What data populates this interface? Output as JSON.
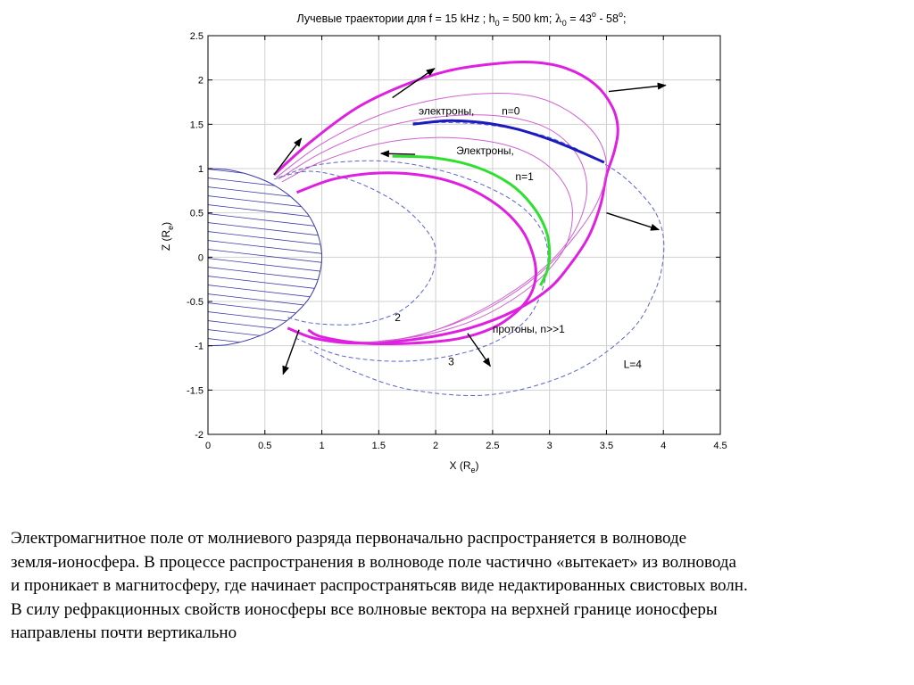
{
  "chart_data": {
    "type": "line",
    "title": {
      "prefix": "Лучевые траектории для f = 15 kHz ;  h",
      "h_sub": "0",
      "h_val": " = 500 km;  ",
      "lambda": "λ",
      "l_sub": "0",
      "l_val1": " = 43",
      "deg1": "o",
      "l_mid": " - 58",
      "deg2": "o",
      "l_end": ";"
    },
    "xlabel": {
      "main": "X (R",
      "sub": "e",
      "close": ")"
    },
    "ylabel": {
      "main": "Z (R",
      "sub": "e",
      "close": ")"
    },
    "xlim": [
      0,
      4.5
    ],
    "ylim": [
      -2,
      2.5
    ],
    "grid": true,
    "x_ticks": [
      "0",
      "0.5",
      "1",
      "1.5",
      "2",
      "2.5",
      "3",
      "3.5",
      "4",
      "4.5"
    ],
    "y_ticks": [
      "2.5",
      "2",
      "1.5",
      "1",
      "0.5",
      "0",
      "-0.5",
      "-1",
      "-1.5",
      "-2"
    ],
    "series": [
      {
        "style": "earth",
        "color": "#3a3aa8",
        "x": [
          0,
          0.16,
          0.31,
          0.45,
          0.57,
          0.7,
          0.82,
          0.9,
          0.97,
          1.0,
          0.97,
          0.9,
          0.82,
          0.7,
          0.57,
          0.45,
          0.31,
          0.16,
          0
        ],
        "y": [
          1,
          0.99,
          0.95,
          0.89,
          0.82,
          0.71,
          0.57,
          0.44,
          0.24,
          0,
          -0.24,
          -0.44,
          -0.57,
          -0.71,
          -0.82,
          -0.89,
          -0.95,
          -0.99,
          -1
        ]
      },
      {
        "style": "field",
        "color": "#5a64c8",
        "x": [
          0.58,
          0.9,
          1.3,
          1.7,
          1.95,
          2.0,
          1.93,
          1.7,
          1.35,
          0.95,
          0.7
        ],
        "y": [
          0.88,
          0.97,
          0.85,
          0.58,
          0.25,
          0.0,
          -0.3,
          -0.6,
          -0.75,
          -0.75,
          -0.68
        ]
      },
      {
        "style": "field",
        "color": "#5a64c8",
        "x": [
          0.62,
          1.0,
          1.6,
          2.2,
          2.7,
          2.95,
          2.97,
          2.8,
          2.4,
          1.8,
          1.2,
          0.78
        ],
        "y": [
          0.9,
          1.05,
          1.08,
          0.92,
          0.62,
          0.25,
          -0.2,
          -0.7,
          -1.02,
          -1.17,
          -1.12,
          -0.92
        ]
      },
      {
        "style": "field",
        "color": "#5a64c8",
        "x": [
          1.8,
          2.4,
          3.0,
          3.55,
          3.85,
          3.98,
          4.0,
          3.92,
          3.7,
          3.2,
          2.5,
          1.8,
          1.3,
          0.9
        ],
        "y": [
          1.52,
          1.5,
          1.35,
          1.0,
          0.65,
          0.35,
          0.0,
          -0.4,
          -0.85,
          -1.3,
          -1.55,
          -1.5,
          -1.3,
          -1.05
        ]
      },
      {
        "style": "ray-thick",
        "color": "#e020e0",
        "x": [
          0.58,
          0.9,
          1.3,
          1.7,
          2.1,
          2.5,
          2.85,
          3.15,
          3.4,
          3.55,
          3.6,
          3.57,
          3.5,
          3.45,
          3.35,
          3.2,
          3.0,
          2.7,
          2.3,
          1.8,
          1.3,
          0.95,
          0.7
        ],
        "y": [
          0.93,
          1.3,
          1.68,
          1.93,
          2.1,
          2.18,
          2.2,
          2.13,
          1.95,
          1.7,
          1.45,
          1.2,
          0.92,
          0.6,
          0.25,
          -0.05,
          -0.35,
          -0.6,
          -0.8,
          -0.93,
          -0.97,
          -0.92,
          -0.8
        ]
      },
      {
        "style": "ray-thin",
        "color": "#d060d0",
        "x": [
          0.6,
          1.0,
          1.5,
          2.0,
          2.5,
          2.9,
          3.2,
          3.42,
          3.5,
          3.42,
          3.2,
          2.9,
          2.5,
          2.1,
          1.7,
          1.3
        ],
        "y": [
          0.9,
          1.28,
          1.6,
          1.78,
          1.85,
          1.8,
          1.62,
          1.35,
          1.02,
          0.62,
          0.2,
          -0.2,
          -0.55,
          -0.78,
          -0.92,
          -0.97
        ]
      },
      {
        "style": "ray-thin",
        "color": "#d060d0",
        "x": [
          0.62,
          1.0,
          1.5,
          2.0,
          2.5,
          2.9,
          3.15,
          3.3,
          3.32,
          3.2,
          2.95,
          2.6,
          2.2,
          1.8,
          1.4
        ],
        "y": [
          0.88,
          1.18,
          1.45,
          1.58,
          1.6,
          1.5,
          1.3,
          1.0,
          0.65,
          0.25,
          -0.12,
          -0.45,
          -0.72,
          -0.9,
          -0.97
        ]
      },
      {
        "style": "ray-thin",
        "color": "#d060d0",
        "x": [
          0.65,
          1.0,
          1.5,
          2.0,
          2.5,
          2.85,
          3.1,
          3.2,
          3.15,
          2.95,
          2.65,
          2.3,
          1.9,
          1.5
        ],
        "y": [
          0.85,
          1.08,
          1.28,
          1.35,
          1.3,
          1.15,
          0.88,
          0.55,
          0.15,
          -0.2,
          -0.5,
          -0.73,
          -0.88,
          -0.95
        ]
      },
      {
        "style": "ray-thick",
        "color": "#e020e0",
        "x": [
          0.78,
          1.1,
          1.5,
          1.9,
          2.25,
          2.55,
          2.75,
          2.85,
          2.88,
          2.83,
          2.7,
          2.5,
          2.2,
          1.8,
          1.35,
          1.0,
          0.88
        ],
        "y": [
          0.73,
          0.88,
          0.95,
          0.92,
          0.8,
          0.58,
          0.32,
          0.05,
          -0.2,
          -0.43,
          -0.63,
          -0.8,
          -0.92,
          -0.97,
          -0.97,
          -0.9,
          -0.82
        ]
      },
      {
        "style": "electrons-n0",
        "color": "#1a1abf",
        "x": [
          1.8,
          2.1,
          2.4,
          2.7,
          3.0,
          3.25,
          3.48
        ],
        "y": [
          1.5,
          1.54,
          1.52,
          1.45,
          1.33,
          1.2,
          1.07
        ]
      },
      {
        "style": "electrons-n1",
        "color": "#2ee02e",
        "x": [
          1.62,
          2.0,
          2.35,
          2.65,
          2.85,
          2.97,
          3.0,
          2.98,
          2.92
        ],
        "y": [
          1.14,
          1.12,
          1.02,
          0.83,
          0.58,
          0.3,
          0.05,
          -0.15,
          -0.32
        ]
      }
    ],
    "arrows": [
      {
        "x1": 0.58,
        "y1": 0.93,
        "x2": 0.82,
        "y2": 1.34
      },
      {
        "x1": 1.62,
        "y1": 1.8,
        "x2": 1.99,
        "y2": 2.13
      },
      {
        "x1": 3.52,
        "y1": 1.87,
        "x2": 4.02,
        "y2": 1.94
      },
      {
        "x1": 3.5,
        "y1": 0.5,
        "x2": 3.96,
        "y2": 0.31
      },
      {
        "x1": 2.28,
        "y1": -0.86,
        "x2": 2.48,
        "y2": -1.23
      },
      {
        "x1": 0.8,
        "y1": -0.82,
        "x2": 0.66,
        "y2": -1.32
      },
      {
        "x1": 1.82,
        "y1": 1.16,
        "x2": 1.52,
        "y2": 1.17
      }
    ],
    "annotations": [
      {
        "text": "электроны,",
        "x": 1.85,
        "y": 1.61
      },
      {
        "text": "n=0",
        "x": 2.58,
        "y": 1.61
      },
      {
        "text": "Электроны,",
        "x": 2.18,
        "y": 1.16
      },
      {
        "text": "n=1",
        "x": 2.7,
        "y": 0.87
      },
      {
        "text": "2",
        "x": 1.64,
        "y": -0.72
      },
      {
        "text": "протоны, n>>1",
        "x": 2.5,
        "y": -0.85
      },
      {
        "text": "3",
        "x": 2.11,
        "y": -1.22
      },
      {
        "text": "L=4",
        "x": 3.65,
        "y": -1.25
      }
    ]
  },
  "caption": {
    "lines": [
      "Электромагнитное поле от молниевого разряда первоначально распространяется в волноводе",
      "земля-ионосфера. В процессе распространения в волноводе поле частично «вытекает» из волновода",
      "и проникает в магнитосферу, где начинает распространятьсяв виде недактированных свистовых волн.",
      "В силу рефракционных свойств ионосферы все волновые вектора на верхней границе ионосферы",
      "направлены почти вертикально"
    ]
  }
}
